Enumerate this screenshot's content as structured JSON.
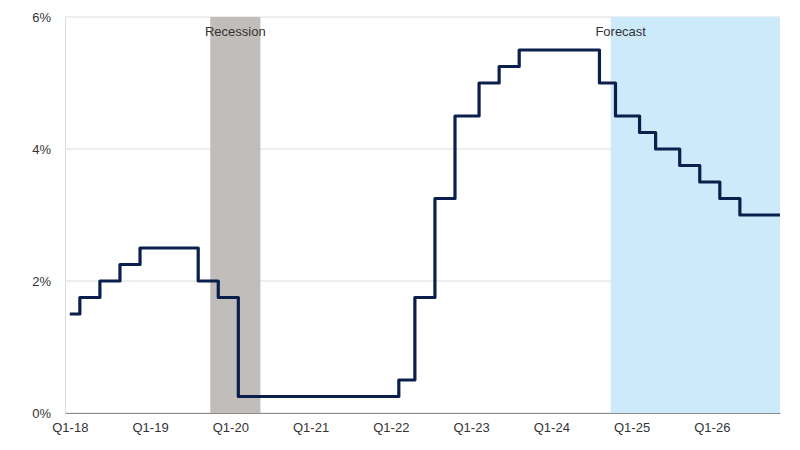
{
  "chart_data": {
    "type": "line",
    "line_style": "step",
    "color": "#0b1f4d",
    "grid": true,
    "x": [
      2018.0,
      2018.125,
      2018.375,
      2018.625,
      2018.875,
      2019.6,
      2019.85,
      2020.1,
      2022.1,
      2022.3,
      2022.55,
      2022.8,
      2023.1,
      2023.35,
      2023.6,
      2024.6,
      2024.8,
      2025.1,
      2025.3,
      2025.6,
      2025.85,
      2026.1,
      2026.35,
      2026.85
    ],
    "values": [
      1.5,
      1.75,
      2.0,
      2.25,
      2.5,
      2.0,
      1.75,
      0.25,
      0.5,
      1.75,
      3.25,
      4.5,
      5.0,
      5.25,
      5.5,
      5.0,
      4.5,
      4.25,
      4.0,
      3.75,
      3.5,
      3.25,
      3.0,
      3.0
    ],
    "xlim": [
      2017.94,
      2026.85
    ],
    "xticks": [
      {
        "value": 2018,
        "label": "Q1-18"
      },
      {
        "value": 2019,
        "label": "Q1-19"
      },
      {
        "value": 2020,
        "label": "Q1-20"
      },
      {
        "value": 2021,
        "label": "Q1-21"
      },
      {
        "value": 2022,
        "label": "Q1-22"
      },
      {
        "value": 2023,
        "label": "Q1-23"
      },
      {
        "value": 2024,
        "label": "Q1-24"
      },
      {
        "value": 2025,
        "label": "Q1-25"
      },
      {
        "value": 2026,
        "label": "Q1-26"
      }
    ],
    "ylim": [
      0,
      6
    ],
    "yticks": [
      {
        "value": 0,
        "label": "0%"
      },
      {
        "value": 2,
        "label": "2%"
      },
      {
        "value": 4,
        "label": "4%"
      },
      {
        "value": 6,
        "label": "6%"
      }
    ],
    "shaded_regions": [
      {
        "label": "Recession",
        "x": [
          2019.75,
          2020.375
        ],
        "color": "#c1bdba"
      },
      {
        "label": "Forecast",
        "x": [
          2024.74,
          2026.85
        ],
        "color": "#cdeafa"
      }
    ]
  }
}
